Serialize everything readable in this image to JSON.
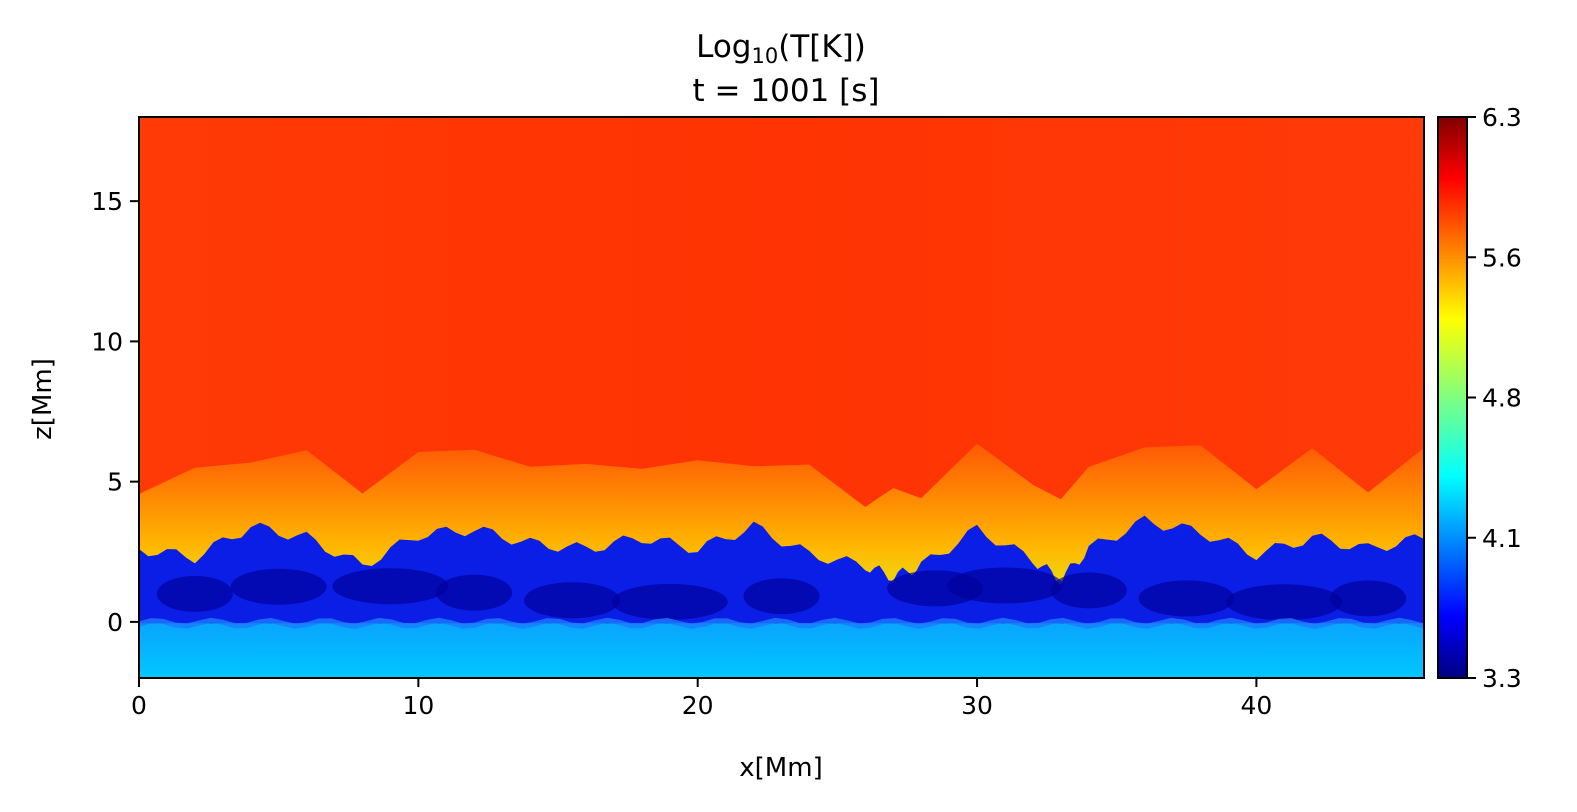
{
  "chart_data": {
    "type": "heatmap",
    "title_prefix": "Log",
    "title_subscript": "10",
    "title_suffix": "(T[K])",
    "subtitle": "t = 1001 [s]",
    "xlabel": "x[Mm]",
    "ylabel": "z[Mm]",
    "xlim": [
      0,
      46
    ],
    "ylim": [
      -2,
      18
    ],
    "xticks": [
      0,
      10,
      20,
      30,
      40
    ],
    "yticks": [
      0,
      5,
      10,
      15
    ],
    "colorbar": {
      "colormap": "jet",
      "range": [
        3.3,
        6.3
      ],
      "ticks": [
        "3.3",
        "4.1",
        "4.8",
        "5.6",
        "6.3"
      ],
      "tick_values": [
        3.3,
        4.05,
        4.8,
        5.55,
        6.3
      ]
    },
    "layers": {
      "corona_logT": 6.0,
      "transition_region_logT": 5.0,
      "chromosphere_logT": 3.75,
      "photosphere_logT": 4.0
    },
    "transition_region_height_profile": {
      "x": [
        0,
        2,
        4,
        6,
        8,
        10,
        12,
        14,
        16,
        18,
        20,
        22,
        24,
        26,
        27,
        28,
        30,
        32,
        33,
        34,
        36,
        38,
        40,
        42,
        44,
        46
      ],
      "z": [
        2.6,
        2.3,
        3.4,
        3.0,
        2.0,
        3.1,
        3.3,
        2.8,
        2.6,
        3.0,
        2.6,
        3.4,
        2.4,
        2.0,
        1.6,
        2.0,
        3.3,
        2.2,
        1.5,
        2.6,
        3.6,
        3.2,
        2.4,
        3.0,
        2.6,
        3.0
      ]
    },
    "grid": false
  }
}
